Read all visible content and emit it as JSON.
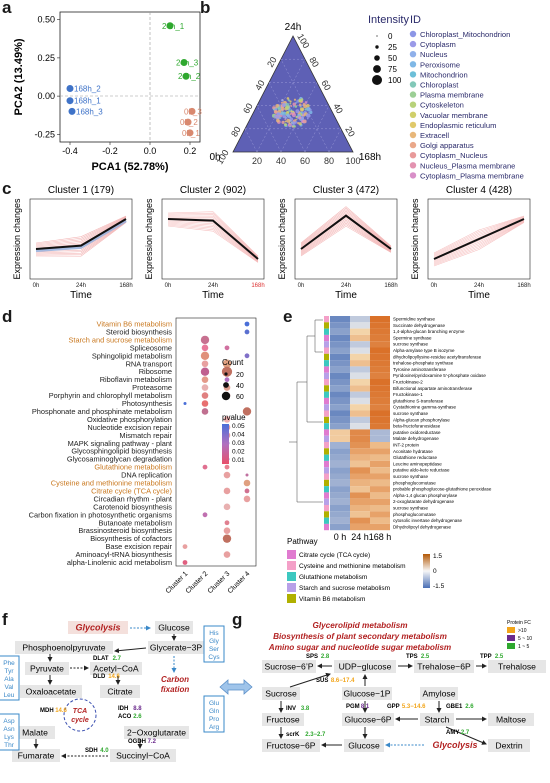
{
  "panels": {
    "a": "a",
    "b": "b",
    "c": "c",
    "d": "d",
    "e": "e",
    "f": "f",
    "g": "g"
  },
  "colors": {
    "blue": "#3f73c8",
    "green": "#2fa82f",
    "salmon": "#d9896f",
    "purple": "#5a5ab5",
    "orange": "#c9781f",
    "darkred": "#a0241e",
    "pathway_box": "#3a88c8",
    "cluster_line": "#111111"
  },
  "pca": {
    "xlabel": "PCA1 (52.78%)",
    "ylabel": "PCA2 (13.49%)",
    "xticks": [
      "-0.4",
      "-0.2",
      "0.0",
      "0.2"
    ],
    "yticks": [
      "0.50",
      "0.25",
      "0.00",
      "-0.25"
    ],
    "points": [
      {
        "label": "24h_1",
        "x": 0.1,
        "y": 0.46,
        "group": "24h"
      },
      {
        "label": "24h_3",
        "x": 0.17,
        "y": 0.22,
        "group": "24h"
      },
      {
        "label": "24h_2",
        "x": 0.18,
        "y": 0.13,
        "group": "24h"
      },
      {
        "label": "168h_2",
        "x": -0.4,
        "y": 0.05,
        "group": "168h"
      },
      {
        "label": "168h_1",
        "x": -0.4,
        "y": -0.03,
        "group": "168h"
      },
      {
        "label": "168h_3",
        "x": -0.39,
        "y": -0.1,
        "group": "168h"
      },
      {
        "label": "0h_3",
        "x": 0.21,
        "y": -0.1,
        "group": "0h"
      },
      {
        "label": "0h_2",
        "x": 0.19,
        "y": -0.17,
        "group": "0h"
      },
      {
        "label": "0h_1",
        "x": 0.2,
        "y": -0.24,
        "group": "0h"
      }
    ]
  },
  "ternary": {
    "axes": {
      "top": "24h",
      "left": "0h",
      "right": "168h"
    },
    "ticks": [
      "20",
      "40",
      "60",
      "80",
      "100"
    ],
    "intensity_title": "Intensity",
    "intensity_levels": [
      "0",
      "25",
      "50",
      "75",
      "100"
    ],
    "id_title": "ID",
    "ids": [
      {
        "name": "Chloroplast_Mitochondrion",
        "color": "#8c96e6"
      },
      {
        "name": "Cytoplasm",
        "color": "#9a9ae8"
      },
      {
        "name": "Nucleus",
        "color": "#8fb0ea"
      },
      {
        "name": "Peroxisome",
        "color": "#7fb8e6"
      },
      {
        "name": "Mitochondrion",
        "color": "#6cbfd8"
      },
      {
        "name": "Chloroplast",
        "color": "#82c8b8"
      },
      {
        "name": "Plasma membrane",
        "color": "#9ccf95"
      },
      {
        "name": "Cytoskeleton",
        "color": "#b8d27a"
      },
      {
        "name": "Vacuolar membrane",
        "color": "#d0cf6a"
      },
      {
        "name": "Endoplasmic reticulum",
        "color": "#e0c96a"
      },
      {
        "name": "Extracell",
        "color": "#e8b77a"
      },
      {
        "name": "Golgi apparatus",
        "color": "#eaa88a"
      },
      {
        "name": "Cytoplasm_Nucleus",
        "color": "#e89a9a"
      },
      {
        "name": "Nucleus_Plasma membrane",
        "color": "#e393b0"
      },
      {
        "name": "Cytoplasm_Plasma membrane",
        "color": "#d88fc8"
      }
    ]
  },
  "clusters": {
    "xlabel": "Time",
    "ylabel": "Expression changes",
    "xticks": [
      "0h",
      "24h",
      "168h"
    ],
    "items": [
      {
        "title": "Cluster 1 (179)",
        "values": [
          -0.3,
          -0.2,
          0.6
        ]
      },
      {
        "title": "Cluster 2 (902)",
        "values": [
          0.6,
          0.55,
          -0.6
        ]
      },
      {
        "title": "Cluster 3 (472)",
        "values": [
          -0.3,
          0.7,
          -0.3
        ]
      },
      {
        "title": "Cluster 4 (428)",
        "values": [
          -0.6,
          0.0,
          0.6
        ]
      }
    ]
  },
  "enrichment": {
    "pathways": [
      {
        "name": "Vitamin B6 metabolism",
        "highlight": true
      },
      {
        "name": "Steroid biosynthesis",
        "highlight": false
      },
      {
        "name": "Starch and sucrose metabolism",
        "highlight": true
      },
      {
        "name": "Spliceosome",
        "highlight": false
      },
      {
        "name": "Sphingolipid metabolism",
        "highlight": false
      },
      {
        "name": "RNA transport",
        "highlight": false
      },
      {
        "name": "Ribosome",
        "highlight": false
      },
      {
        "name": "Riboflavin metabolism",
        "highlight": false
      },
      {
        "name": "Proteasome",
        "highlight": false
      },
      {
        "name": "Porphyrin and chlorophyll metabolism",
        "highlight": false
      },
      {
        "name": "Photosynthesis",
        "highlight": false
      },
      {
        "name": "Phosphonate and phosphinate metabolism",
        "highlight": false
      },
      {
        "name": "Oxidative phosphorylation",
        "highlight": false
      },
      {
        "name": "Nucleotide excision repair",
        "highlight": false
      },
      {
        "name": "Mismatch repair",
        "highlight": false
      },
      {
        "name": "MAPK signaling pathway - plant",
        "highlight": false
      },
      {
        "name": "Glycosphingolipid biosynthesis",
        "highlight": false
      },
      {
        "name": "Glycosaminoglycan degradation",
        "highlight": false
      },
      {
        "name": "Glutathione metabolism",
        "highlight": true
      },
      {
        "name": "DNA replication",
        "highlight": false
      },
      {
        "name": "Cysteine and methionine metabolism",
        "highlight": true
      },
      {
        "name": "Citrate cycle (TCA cycle)",
        "highlight": true
      },
      {
        "name": "Circadian rhythm - plant",
        "highlight": false
      },
      {
        "name": "Carotenoid biosynthesis",
        "highlight": false
      },
      {
        "name": "Carbon fixation in photosynthetic organisms",
        "highlight": false
      },
      {
        "name": "Butanoate metabolism",
        "highlight": false
      },
      {
        "name": "Brassinosteroid biosynthesis",
        "highlight": false
      },
      {
        "name": "Biosynthesis of cofactors",
        "highlight": false
      },
      {
        "name": "Base excision repair",
        "highlight": false
      },
      {
        "name": "Aminoacyl-tRNA biosynthesis",
        "highlight": false
      },
      {
        "name": "alpha-Linolenic acid metabolism",
        "highlight": false
      }
    ],
    "clusters": [
      "Cluster 1",
      "Cluster 2",
      "Cluster 3",
      "Cluster 4"
    ],
    "count_title": "Count",
    "count_levels": [
      "20",
      "40",
      "60"
    ],
    "pvalue_title": "pvalue",
    "pvalue_levels": [
      "0.05",
      "0.04",
      "0.03",
      "0.02",
      "0.01"
    ]
  },
  "heatmap": {
    "columns": [
      "0 h",
      "24 h",
      "168 h"
    ],
    "pathway_label": "Pathway",
    "scale": [
      "1.5",
      "0",
      "-1.5"
    ],
    "genes": [
      "Spermidine synthase",
      "Succinate dehydrogenase",
      "1,4-alpha-glucan branching enzyme",
      "Spermine synthase",
      "sucrose synthase",
      "Alpha-amylase type B isozyme",
      "dihydrolipoyllysine-residue acetyltransferase",
      "trehalose-phosphate synthase",
      "Tyrosine aminotransferase",
      "Pyridoxine/pyridoxamine 5'-phosphate oxidase",
      "Fructokinase-2",
      "Bifunctional aspartate aminotransferase",
      "Fructokinase-1",
      "glutathione S-transferase",
      "Cystathionine gamma-synthase",
      "sucrose synthase",
      "Alpha-glucan phosphorylase",
      "beta-fructofuranosidase",
      "putative oxidoreductase",
      "Malate dehydrogenase",
      "INT-2 protein",
      "Aconitate hydratase",
      "Glutathione reductase",
      "Leucine aminopeptidase",
      "putative aldo-keto reductase",
      "sucrose synthase",
      "phosphoglucomutase",
      "probable phosphoglucose-glutathione peroxidase",
      "Alpha-1,4 glucan phosphorylase",
      "2-oxoglutarate dehydrogenase",
      "sucrose synthase",
      "phosphoglucomutase",
      "cytosolic invertase dehydrogenase",
      "Dihydrolipoyl dehydrogenase"
    ],
    "legend": [
      {
        "name": "Citrate cycle (TCA cycle)",
        "color": "#e07bd0"
      },
      {
        "name": "Cysteine and methionine metabolism",
        "color": "#f4a0c8"
      },
      {
        "name": "Glutathione metabolism",
        "color": "#3cc8c0"
      },
      {
        "name": "Starch and sucrose metabolism",
        "color": "#b8a0e8"
      },
      {
        "name": "Vitamin B6 metabolism",
        "color": "#b0b000"
      }
    ]
  },
  "pathway_f": {
    "glycolysis": "Glycolysis",
    "carbon_fixation": "Carbon fixation",
    "tca": "TCA cycle",
    "nodes": {
      "glucose": "Glucose",
      "glycerate": "Glycerate−3P",
      "pep": "Phosphoenolpyruvate",
      "pyruvate": "Pyruvate",
      "acetyl": "Acetyl−CoA",
      "oaa": "Oxaloacetate",
      "citrate": "Citrate",
      "malate": "Malate",
      "oxo": "2−Oxoglutarate",
      "fumarate": "Fumarate",
      "succinyl": "Succinyl−CoA"
    },
    "aa_right1": [
      "His",
      "Gly",
      "Ser",
      "Cys"
    ],
    "aa_left1": [
      "Phe",
      "Tyr",
      "Ala",
      "Val",
      "Leu"
    ],
    "aa_left2": [
      "Asp",
      "Asn",
      "Lys",
      "Thr"
    ],
    "aa_right2": [
      "Glu",
      "Gln",
      "Pro",
      "Arg"
    ],
    "enzymes": {
      "dlat": {
        "name": "DLAT",
        "val": "2.7"
      },
      "dld": {
        "name": "DLD",
        "val": "14.6"
      },
      "mdh": {
        "name": "MDH",
        "val": "14.6"
      },
      "idh": {
        "name": "IDH",
        "val": "8.8"
      },
      "aco": {
        "name": "ACO",
        "val": "2.6"
      },
      "ogdh": {
        "name": "OGDH",
        "val": "7.2"
      },
      "sdh": {
        "name": "SDH",
        "val": "4.0"
      }
    }
  },
  "pathway_g": {
    "titles": [
      "Glycerolipid metabolism",
      "Biosynthesis of plant secondary metabolism",
      "Amino sugar and nucleotide sugar metabolism"
    ],
    "legend_title": "Protein FC",
    "legend": [
      {
        "label": ">10",
        "color": "#f2a51a"
      },
      {
        "label": "5 ~ 10",
        "color": "#6b2a8c"
      },
      {
        "label": "1 ~ 5",
        "color": "#2fa82f"
      }
    ],
    "glycolysis": "Glycolysis",
    "nodes": {
      "sucrose6p": "Sucrose−6’P",
      "udp": "UDP−glucose",
      "trehalose6p": "Trehalose−6P",
      "trehalose": "Trehalose",
      "sucrose": "Sucrose",
      "glucose1p": "Glucose−1P",
      "amylose": "Amylose",
      "fructose": "Fructose",
      "glucose6p": "Glucose−6P",
      "starch": "Starch",
      "maltose": "Maltose",
      "dextrin": "Dextrin",
      "fructose6p": "Fructose−6P",
      "glucose": "Glucose"
    },
    "enzymes": {
      "sps": {
        "name": "SPS",
        "val": "2.8"
      },
      "tps": {
        "name": "TPS",
        "val": "2.5"
      },
      "tpp": {
        "name": "TPP",
        "val": "2.5"
      },
      "sus": {
        "name": "SUS",
        "val": "8.6−17.4"
      },
      "inv": {
        "name": "INV",
        "val": "3.8"
      },
      "pgm": {
        "name": "PGM",
        "val": "8.1"
      },
      "gpp": {
        "name": "GPP",
        "val": "5.3−14.6"
      },
      "gbe1": {
        "name": "GBE1",
        "val": "2.6"
      },
      "amy": {
        "name": "AMY",
        "val": "2.7"
      },
      "scrk": {
        "name": "scrK",
        "val": "2.3−2.7"
      }
    }
  }
}
